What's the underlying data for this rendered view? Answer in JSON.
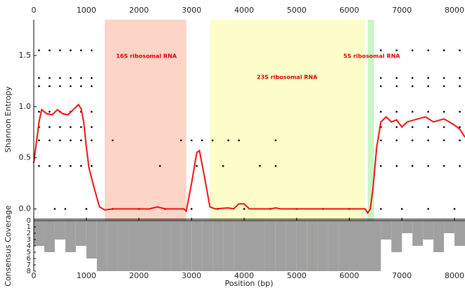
{
  "chart_data": {
    "type": "line",
    "xlabel": "Position (bp)",
    "ylabel": "Shannon Entropy",
    "y2label": "Consensus Coverage",
    "xlim": [
      0,
      8200
    ],
    "xticks": [
      0,
      1000,
      2000,
      3000,
      4000,
      5000,
      6000,
      7000,
      8000
    ],
    "ylim": [
      -0.1,
      1.85
    ],
    "yticks": [
      {
        "value": 0,
        "label": "0.0"
      },
      0.5,
      {
        "value": 1,
        "label": "1.0"
      },
      1.5
    ],
    "coverage_lim": [
      0,
      8
    ],
    "coverage_ticks": [
      0,
      1,
      2,
      3,
      4,
      5,
      6,
      7,
      8
    ],
    "regions": [
      {
        "name": "16S ribosomal RNA",
        "start": 1350,
        "end": 2900,
        "color": "#fdd5c6"
      },
      {
        "name": "23S ribosomal RNA",
        "start": 3350,
        "end": 6300,
        "color": "#fdfdc9"
      },
      {
        "name": "5S ribosomal RNA",
        "start": 6350,
        "end": 6470,
        "color": "#c8f5c4"
      }
    ],
    "line": {
      "color": "#ee1111",
      "x": [
        0,
        100,
        150,
        250,
        350,
        450,
        550,
        650,
        750,
        850,
        900,
        950,
        1000,
        1050,
        1150,
        1250,
        1350,
        1500,
        2200,
        2350,
        2500,
        2850,
        2900,
        3000,
        3100,
        3150,
        3250,
        3350,
        3450,
        3700,
        3800,
        3900,
        4000,
        4100,
        4500,
        4600,
        4700,
        6300,
        6350,
        6400,
        6450,
        6520,
        6600,
        6700,
        6800,
        6900,
        7000,
        7100,
        7300,
        7450,
        7600,
        7800,
        7900,
        8000,
        8100,
        8200
      ],
      "y": [
        0.45,
        0.85,
        0.97,
        0.93,
        0.92,
        0.97,
        0.93,
        0.92,
        0.97,
        1.02,
        0.98,
        0.85,
        0.6,
        0.4,
        0.2,
        0.02,
        -0.01,
        0,
        0,
        0.02,
        0,
        0,
        -0.02,
        0.25,
        0.55,
        0.57,
        0.3,
        0.02,
        0,
        0.01,
        0,
        0.05,
        0.05,
        0,
        0,
        0.01,
        0,
        0,
        -0.04,
        0,
        0.2,
        0.6,
        0.85,
        0.9,
        0.85,
        0.87,
        0.8,
        0.85,
        0.88,
        0.9,
        0.85,
        0.88,
        0.85,
        0.82,
        0.78,
        0.7
      ]
    },
    "points": {
      "color": "#000000",
      "x": [
        100,
        300,
        500,
        700,
        900,
        1100,
        6600,
        6900,
        7200,
        7500,
        7800,
        8100,
        100,
        300,
        500,
        700,
        900,
        1100,
        6600,
        6900,
        7200,
        7500,
        7800,
        8100,
        100,
        300,
        500,
        700,
        900,
        1100,
        6600,
        6900,
        7200,
        7500,
        7800,
        8100,
        100,
        300,
        500,
        700,
        900,
        1100,
        6600,
        6900,
        7200,
        7500,
        7800,
        8100,
        100,
        300,
        500,
        700,
        900,
        1100,
        6600,
        6900,
        7200,
        7500,
        7800,
        8100,
        100,
        300,
        500,
        700,
        900,
        1100,
        6600,
        6900,
        7200,
        7500,
        7800,
        8100,
        100,
        300,
        500,
        700,
        900,
        1100,
        6600,
        6900,
        7200,
        7500,
        7800,
        8100,
        1500,
        2800,
        3000,
        3200,
        3400,
        3700,
        3900,
        4600,
        2400,
        3100,
        3600,
        4300,
        4600,
        400,
        600,
        1000,
        1500,
        2000,
        2500,
        3000,
        3500,
        4000,
        4500,
        5000,
        5500,
        6000,
        6600,
        7000,
        7500,
        8000
      ],
      "y": [
        0.42,
        0.42,
        0.42,
        0.42,
        0.42,
        0.42,
        0.42,
        0.42,
        0.42,
        0.42,
        0.42,
        0.42,
        0.67,
        0.67,
        0.67,
        0.67,
        0.67,
        0.67,
        0.67,
        0.67,
        0.67,
        0.67,
        0.67,
        0.67,
        0.8,
        0.8,
        0.8,
        0.8,
        0.8,
        0.8,
        0.8,
        0.8,
        0.8,
        0.8,
        0.8,
        0.8,
        0.95,
        0.95,
        0.95,
        0.95,
        0.95,
        0.95,
        0.95,
        0.95,
        0.95,
        0.95,
        0.95,
        0.95,
        1.2,
        1.2,
        1.2,
        1.2,
        1.2,
        1.2,
        1.2,
        1.2,
        1.2,
        1.2,
        1.2,
        1.2,
        1.28,
        1.28,
        1.28,
        1.28,
        1.28,
        1.28,
        1.28,
        1.28,
        1.28,
        1.28,
        1.28,
        1.28,
        1.55,
        1.55,
        1.55,
        1.55,
        1.55,
        1.55,
        1.55,
        1.55,
        1.55,
        1.55,
        1.55,
        1.55,
        0.67,
        0.67,
        0.67,
        0.67,
        0.67,
        0.67,
        0.67,
        0.67,
        0.42,
        0.42,
        0.42,
        0.42,
        0.42,
        0,
        0,
        0,
        0,
        0,
        0,
        0,
        0,
        0,
        0,
        0,
        0,
        0,
        0,
        0,
        0,
        0
      ]
    },
    "coverage": {
      "color": "#a0a0a0",
      "x": [
        0,
        200,
        400,
        600,
        800,
        1000,
        1200,
        1400,
        1600,
        1800,
        2000,
        2200,
        2400,
        2600,
        2800,
        3000,
        3200,
        3400,
        3600,
        3800,
        4000,
        4200,
        4400,
        4600,
        4800,
        5000,
        5200,
        5400,
        5600,
        5800,
        6000,
        6200,
        6400,
        6600,
        6800,
        7000,
        7200,
        7400,
        7600,
        7800,
        8000,
        8200
      ],
      "values": [
        4,
        5,
        3,
        5,
        4,
        6,
        8,
        8,
        8,
        8,
        8,
        8,
        8,
        8,
        8,
        8,
        8,
        8,
        8,
        8,
        8,
        8,
        8,
        8,
        8,
        8,
        8,
        8,
        8,
        8,
        8,
        8,
        8,
        3,
        5,
        2,
        4,
        3,
        5,
        2,
        4,
        3
      ]
    }
  }
}
